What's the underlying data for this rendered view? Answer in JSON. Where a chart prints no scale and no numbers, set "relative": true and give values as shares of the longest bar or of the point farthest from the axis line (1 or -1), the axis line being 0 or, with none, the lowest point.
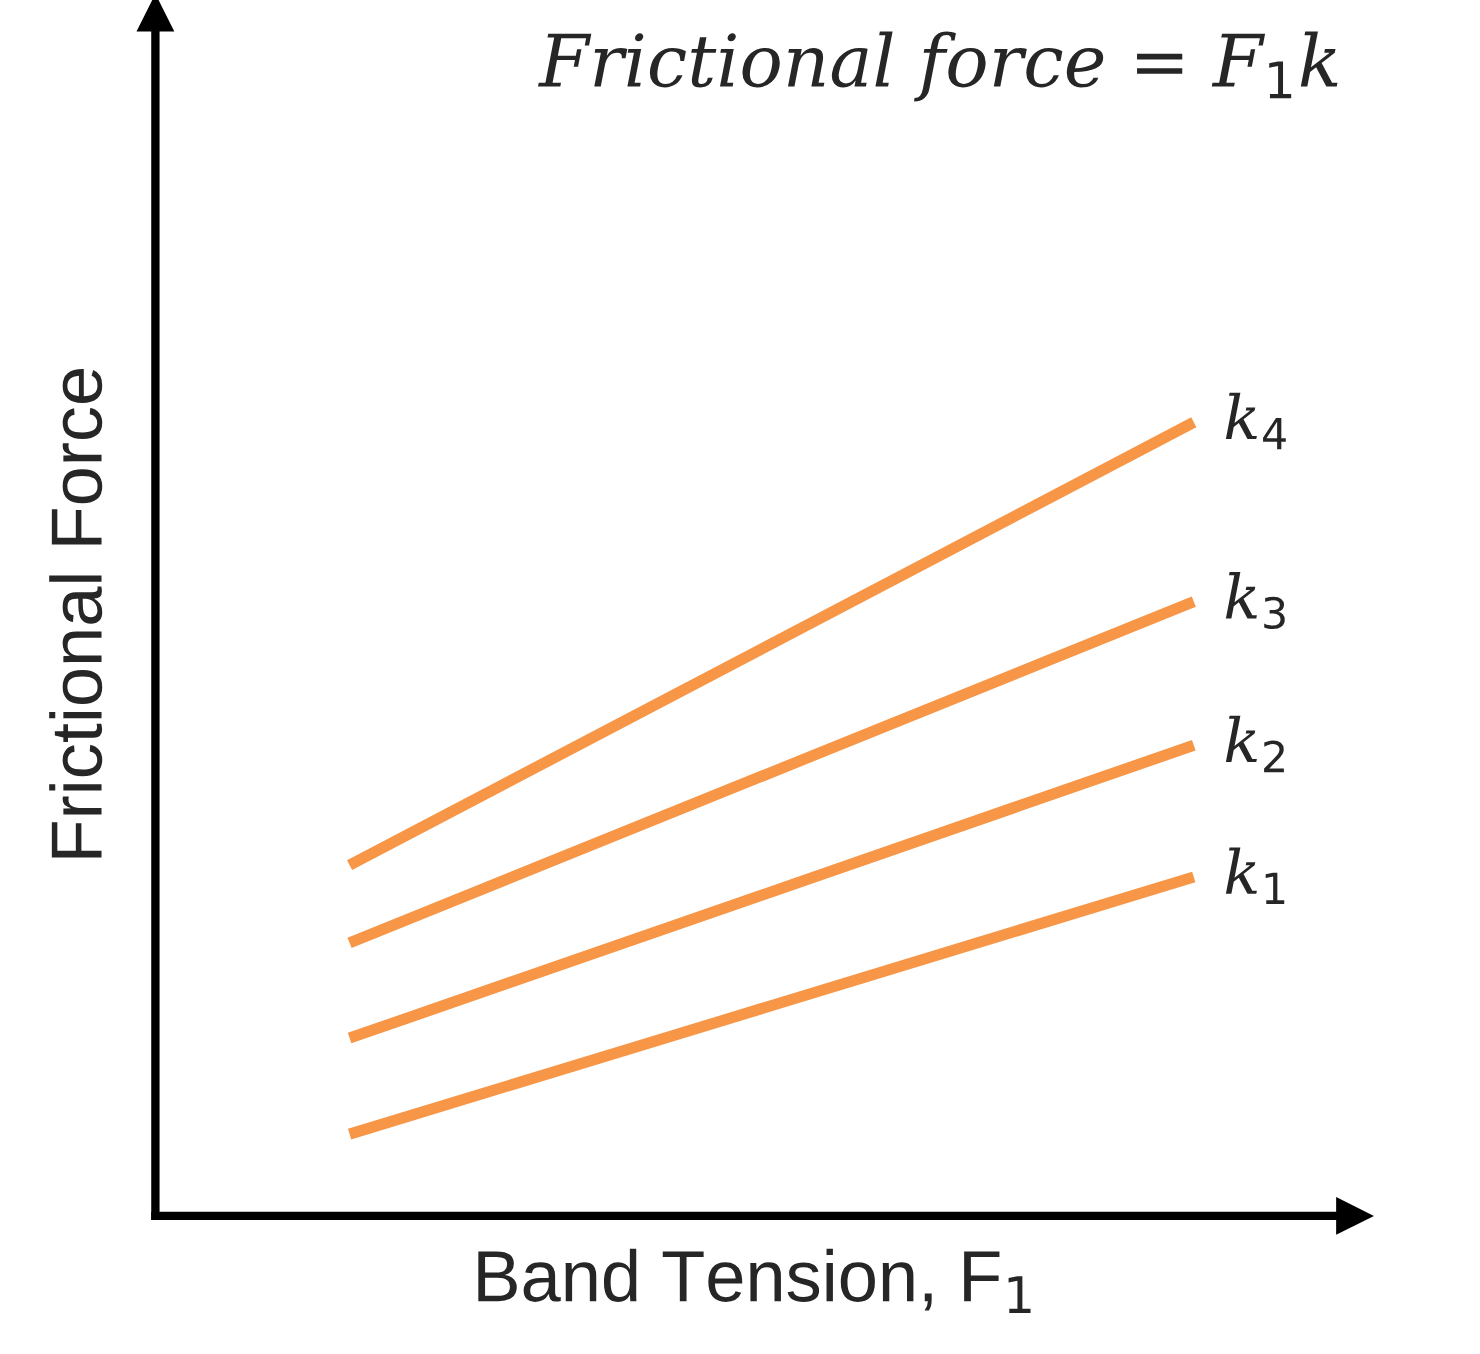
{
  "chart_data": {
    "type": "line",
    "relative": true,
    "title": "Frictional force = F$_{1}$k",
    "xlabel": "Band Tension, F$_{1}$",
    "ylabel": "Frictional Force",
    "tick_labels": false,
    "legend": false,
    "marker": "none",
    "line_style": "solid",
    "categories": [
      null,
      null
    ],
    "series": [
      {
        "name": "k$_{4}$",
        "color": "#f79646",
        "values": [
          0.442,
          1
        ]
      },
      {
        "name": "k$_{3}$",
        "color": "#f79646",
        "values": [
          0.344,
          0.774
        ]
      },
      {
        "name": "k$_{2}$",
        "color": "#f79646",
        "values": [
          0.224,
          0.593
        ]
      },
      {
        "name": "k$_{1}$",
        "color": "#f79646",
        "values": [
          0.103,
          0.427
        ]
      }
    ]
  }
}
